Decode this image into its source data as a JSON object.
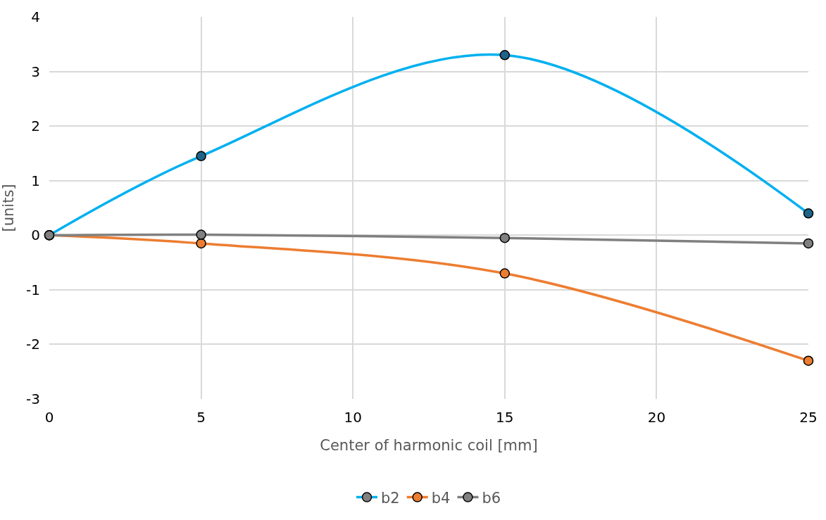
{
  "chart_data": {
    "type": "line",
    "xlabel": "Center of harmonic coil [mm]",
    "ylabel": "[units]",
    "x": [
      0,
      5,
      15,
      25
    ],
    "series": [
      {
        "name": "b2",
        "color": "#00b0f0",
        "colors": [
          "#808080",
          "#1f6388",
          "#1f6388",
          "#1f6388"
        ],
        "values": [
          0,
          1.45,
          3.3,
          0.4
        ]
      },
      {
        "name": "b4",
        "color": "#ed7d31",
        "values": [
          0,
          -0.15,
          -0.7,
          -2.3
        ]
      },
      {
        "name": "b6",
        "color": "#808080",
        "values": [
          0,
          0.01,
          -0.05,
          -0.15
        ]
      }
    ],
    "xlim": [
      0,
      25
    ],
    "xticks": [
      0,
      5,
      10,
      15,
      20,
      25
    ],
    "ylim": [
      -3,
      4
    ],
    "yticks": [
      -3,
      -2,
      -1,
      0,
      1,
      2,
      3,
      4
    ],
    "grid": true,
    "legend": "bottom",
    "marker": "circle",
    "line_style": "solid"
  }
}
